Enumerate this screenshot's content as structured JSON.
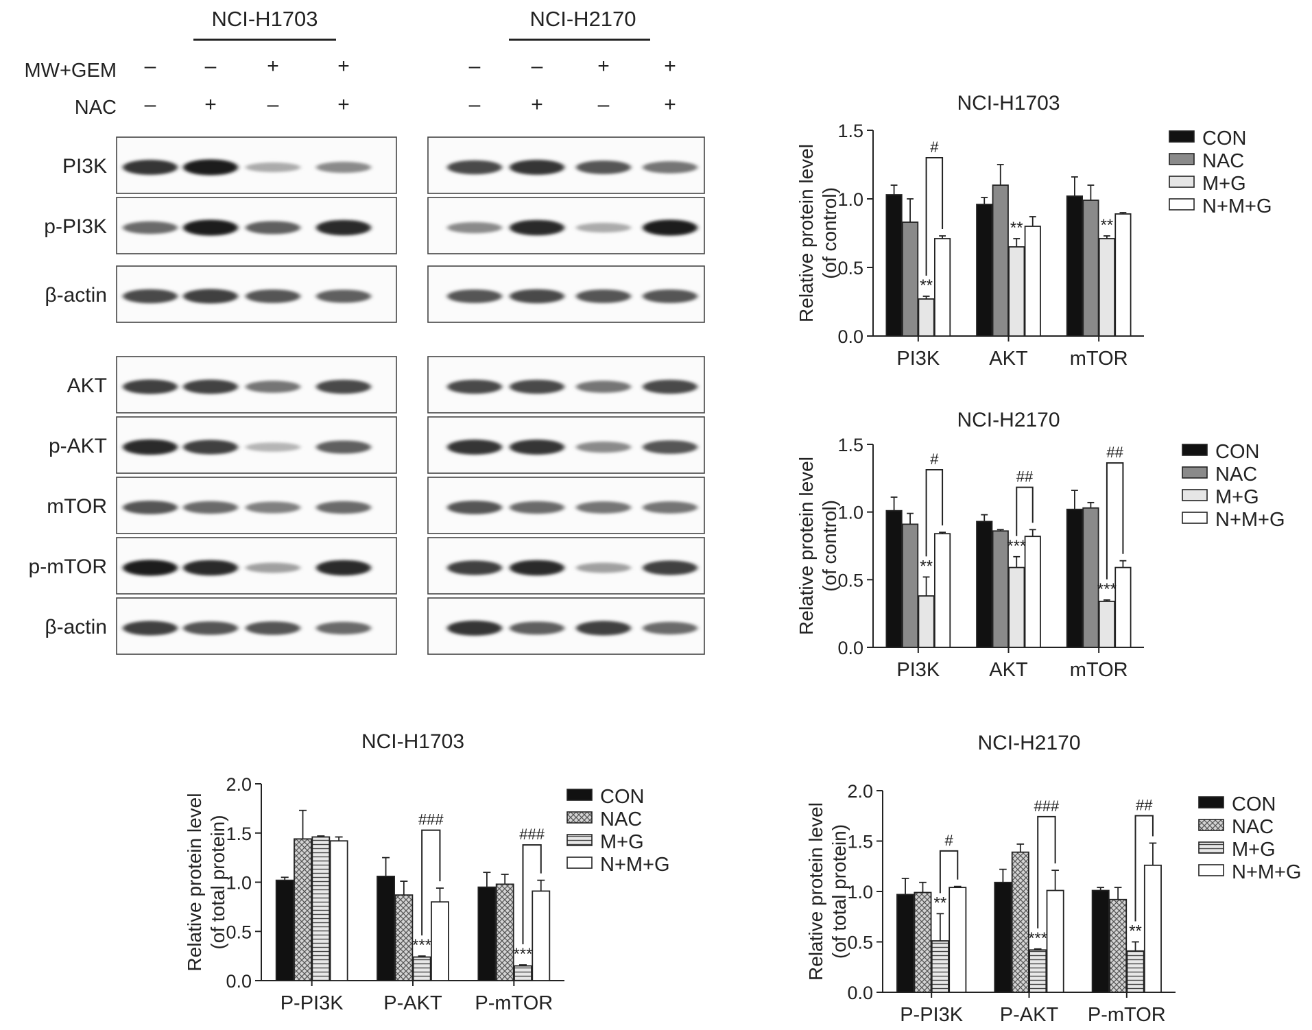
{
  "blots": {
    "cell_lines": [
      "NCI-H1703",
      "NCI-H2170"
    ],
    "conditions": [
      {
        "label": "MW+GEM",
        "signs": [
          "–",
          "–",
          "+",
          "+"
        ]
      },
      {
        "label": "NAC",
        "signs": [
          "–",
          "+",
          "–",
          "+"
        ]
      }
    ],
    "sections": [
      {
        "rows": [
          {
            "label": "PI3K",
            "intensity": [
              [
                0.85,
                0.95,
                0.3,
                0.45
              ],
              [
                0.75,
                0.85,
                0.7,
                0.55
              ]
            ]
          },
          {
            "label": "p-PI3K",
            "intensity": [
              [
                0.6,
                0.95,
                0.65,
                0.9
              ],
              [
                0.45,
                0.9,
                0.3,
                0.95
              ]
            ]
          },
          {
            "label": "β-actin",
            "intensity": [
              [
                0.75,
                0.8,
                0.7,
                0.65
              ],
              [
                0.7,
                0.75,
                0.7,
                0.7
              ]
            ]
          }
        ]
      },
      {
        "rows": [
          {
            "label": "AKT",
            "intensity": [
              [
                0.8,
                0.78,
                0.55,
                0.75
              ],
              [
                0.75,
                0.75,
                0.55,
                0.75
              ]
            ]
          },
          {
            "label": "p-AKT",
            "intensity": [
              [
                0.9,
                0.8,
                0.25,
                0.65
              ],
              [
                0.85,
                0.85,
                0.45,
                0.7
              ]
            ]
          },
          {
            "label": "mTOR",
            "intensity": [
              [
                0.7,
                0.6,
                0.5,
                0.6
              ],
              [
                0.7,
                0.6,
                0.55,
                0.55
              ]
            ]
          },
          {
            "label": "p-mTOR",
            "intensity": [
              [
                0.95,
                0.9,
                0.35,
                0.9
              ],
              [
                0.8,
                0.9,
                0.35,
                0.8
              ]
            ]
          },
          {
            "label": "β-actin",
            "intensity": [
              [
                0.8,
                0.7,
                0.7,
                0.6
              ],
              [
                0.85,
                0.65,
                0.8,
                0.6
              ]
            ]
          }
        ]
      }
    ]
  },
  "chart_data": [
    {
      "type": "bar",
      "title": "NCI-H1703",
      "ylabel": [
        "Relative protein level",
        "(of control)"
      ],
      "categories": [
        "PI3K",
        "AKT",
        "mTOR"
      ],
      "ylim": [
        0,
        1.5
      ],
      "yticks": [
        "0.0",
        "0.5",
        "1.0",
        "1.5"
      ],
      "series": [
        {
          "name": "CON",
          "values": [
            1.03,
            0.96,
            1.02
          ],
          "errors": [
            0.07,
            0.05,
            0.14
          ],
          "fill": "#111111",
          "pattern": "solid"
        },
        {
          "name": "NAC",
          "values": [
            0.83,
            1.1,
            0.99
          ],
          "errors": [
            0.17,
            0.15,
            0.11
          ],
          "fill": "#8a8a8a",
          "pattern": "solid"
        },
        {
          "name": "M+G",
          "values": [
            0.27,
            0.65,
            0.71
          ],
          "errors": [
            0.02,
            0.06,
            0.02
          ],
          "fill": "#e6e6e6",
          "pattern": "solid"
        },
        {
          "name": "N+M+G",
          "values": [
            0.71,
            0.8,
            0.89
          ],
          "errors": [
            0.02,
            0.07,
            0.01
          ],
          "fill": "#ffffff",
          "pattern": "solid"
        }
      ],
      "stars": [
        {
          "category": 0,
          "label": "**"
        },
        {
          "category": 1,
          "label": "**"
        },
        {
          "category": 2,
          "label": "**"
        }
      ],
      "brackets": [
        {
          "category": 0,
          "label": "#"
        }
      ]
    },
    {
      "type": "bar",
      "title": "NCI-H2170",
      "ylabel": [
        "Relative protein level",
        "(of control)"
      ],
      "categories": [
        "PI3K",
        "AKT",
        "mTOR"
      ],
      "ylim": [
        0,
        1.5
      ],
      "yticks": [
        "0.0",
        "0.5",
        "1.0",
        "1.5"
      ],
      "series": [
        {
          "name": "CON",
          "values": [
            1.01,
            0.93,
            1.02
          ],
          "errors": [
            0.1,
            0.05,
            0.14
          ],
          "fill": "#111111",
          "pattern": "solid"
        },
        {
          "name": "NAC",
          "values": [
            0.91,
            0.86,
            1.03
          ],
          "errors": [
            0.08,
            0.01,
            0.04
          ],
          "fill": "#8a8a8a",
          "pattern": "solid"
        },
        {
          "name": "M+G",
          "values": [
            0.38,
            0.59,
            0.34
          ],
          "errors": [
            0.14,
            0.08,
            0.01
          ],
          "fill": "#e6e6e6",
          "pattern": "solid"
        },
        {
          "name": "N+M+G",
          "values": [
            0.84,
            0.82,
            0.59
          ],
          "errors": [
            0.01,
            0.05,
            0.05
          ],
          "fill": "#ffffff",
          "pattern": "solid"
        }
      ],
      "stars": [
        {
          "category": 0,
          "label": "**"
        },
        {
          "category": 1,
          "label": "***"
        },
        {
          "category": 2,
          "label": "***"
        }
      ],
      "brackets": [
        {
          "category": 0,
          "label": "#"
        },
        {
          "category": 1,
          "label": "##"
        },
        {
          "category": 2,
          "label": "##"
        }
      ]
    },
    {
      "type": "bar",
      "title": "NCI-H1703",
      "ylabel": [
        "Relative protein level",
        "(of total protein)"
      ],
      "categories": [
        "P-PI3K",
        "P-AKT",
        "P-mTOR"
      ],
      "ylim": [
        0,
        2.0
      ],
      "yticks": [
        "0.0",
        "0.5",
        "1.0",
        "1.5",
        "2.0"
      ],
      "series": [
        {
          "name": "CON",
          "values": [
            1.02,
            1.06,
            0.95
          ],
          "errors": [
            0.03,
            0.19,
            0.15
          ],
          "fill": "#111111",
          "pattern": "solid"
        },
        {
          "name": "NAC",
          "values": [
            1.44,
            0.87,
            0.98
          ],
          "errors": [
            0.29,
            0.14,
            0.1
          ],
          "fill": "#cfcfcf",
          "pattern": "cross"
        },
        {
          "name": "M+G",
          "values": [
            1.46,
            0.24,
            0.15
          ],
          "errors": [
            0.01,
            0.01,
            0.01
          ],
          "fill": "#d0d0d0",
          "pattern": "hlines"
        },
        {
          "name": "N+M+G",
          "values": [
            1.42,
            0.8,
            0.91
          ],
          "errors": [
            0.04,
            0.14,
            0.11
          ],
          "fill": "#ffffff",
          "pattern": "solid"
        }
      ],
      "stars": [
        {
          "category": 1,
          "label": "***"
        },
        {
          "category": 2,
          "label": "***"
        }
      ],
      "brackets": [
        {
          "category": 1,
          "label": "###"
        },
        {
          "category": 2,
          "label": "###"
        }
      ]
    },
    {
      "type": "bar",
      "title": "NCI-H2170",
      "ylabel": [
        "Relative protein level",
        "(of total protein)"
      ],
      "categories": [
        "P-PI3K",
        "P-AKT",
        "P-mTOR"
      ],
      "ylim": [
        0,
        2.0
      ],
      "yticks": [
        "0.0",
        "0.5",
        "1.0",
        "1.5",
        "2.0"
      ],
      "series": [
        {
          "name": "CON",
          "values": [
            0.97,
            1.09,
            1.01
          ],
          "errors": [
            0.16,
            0.13,
            0.03
          ],
          "fill": "#111111",
          "pattern": "solid"
        },
        {
          "name": "NAC",
          "values": [
            0.99,
            1.39,
            0.92
          ],
          "errors": [
            0.1,
            0.08,
            0.12
          ],
          "fill": "#cfcfcf",
          "pattern": "cross"
        },
        {
          "name": "M+G",
          "values": [
            0.51,
            0.42,
            0.41
          ],
          "errors": [
            0.27,
            0.01,
            0.09
          ],
          "fill": "#d0d0d0",
          "pattern": "hlines"
        },
        {
          "name": "N+M+G",
          "values": [
            1.04,
            1.01,
            1.26
          ],
          "errors": [
            0.01,
            0.2,
            0.22
          ],
          "fill": "#ffffff",
          "pattern": "solid"
        }
      ],
      "stars": [
        {
          "category": 0,
          "label": "**"
        },
        {
          "category": 1,
          "label": "***"
        },
        {
          "category": 2,
          "label": "**"
        }
      ],
      "brackets": [
        {
          "category": 0,
          "label": "#"
        },
        {
          "category": 1,
          "label": "###"
        },
        {
          "category": 2,
          "label": "##"
        }
      ]
    }
  ]
}
